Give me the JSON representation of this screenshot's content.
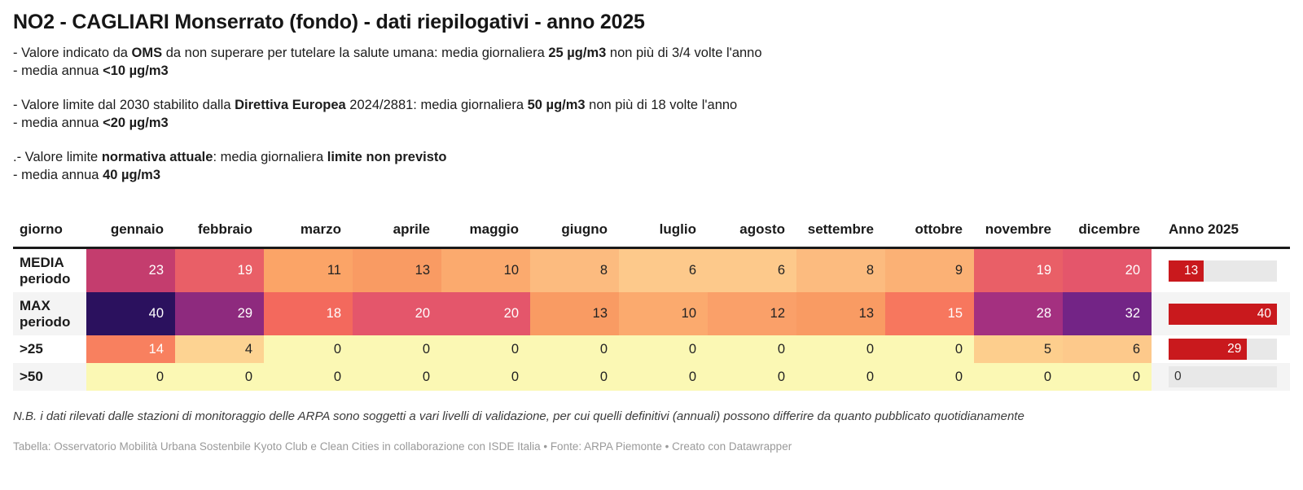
{
  "header": {
    "title": "NO2 - CAGLIARI Monserrato (fondo) - dati riepilogativi - anno 2025"
  },
  "intro": [
    {
      "lines": [
        [
          {
            "text": "- Valore indicato da "
          },
          {
            "text": "OMS",
            "bold": true
          },
          {
            "text": " da non superare per tutelare la salute umana: media giornaliera "
          },
          {
            "text": "25 µg/m3",
            "bold": true
          },
          {
            "text": " non più di 3/4 volte l'anno"
          }
        ],
        [
          {
            "text": "- media annua "
          },
          {
            "text": "<10 µg/m3",
            "bold": true
          }
        ]
      ]
    },
    {
      "lines": [
        [
          {
            "text": "- Valore limite dal 2030 stabilito dalla "
          },
          {
            "text": "Direttiva Europea",
            "bold": true
          },
          {
            "text": " 2024/2881: media giornaliera "
          },
          {
            "text": "50 µg/m3",
            "bold": true
          },
          {
            "text": " non più di 18 volte l'anno"
          }
        ],
        [
          {
            "text": "- media annua "
          },
          {
            "text": "<20 µg/m3",
            "bold": true
          }
        ]
      ]
    },
    {
      "lines": [
        [
          {
            "text": ".- Valore limite "
          },
          {
            "text": "normativa attuale",
            "bold": true
          },
          {
            "text": ": media giornaliera "
          },
          {
            "text": "limite non previsto",
            "bold": true
          }
        ],
        [
          {
            "text": "- media annua "
          },
          {
            "text": "40 µg/m3",
            "bold": true
          }
        ]
      ]
    }
  ],
  "chart_data": {
    "type": "heatmap",
    "unit": "µg/m3",
    "columns": {
      "day": "giorno",
      "months": [
        "gennaio",
        "febbraio",
        "marzo",
        "aprile",
        "maggio",
        "giugno",
        "luglio",
        "agosto",
        "settembre",
        "ottobre",
        "novembre",
        "dicembre"
      ],
      "anno": "Anno 2025"
    },
    "rows": [
      {
        "label": "MEDIA periodo",
        "label_lines": [
          "MEDIA",
          "periodo"
        ],
        "values": [
          23,
          19,
          11,
          13,
          10,
          8,
          6,
          6,
          8,
          9,
          19,
          20
        ],
        "anno": 13
      },
      {
        "label": "MAX periodo",
        "label_lines": [
          "MAX",
          "periodo"
        ],
        "values": [
          40,
          29,
          18,
          20,
          20,
          13,
          10,
          12,
          13,
          15,
          28,
          32
        ],
        "anno": 40
      },
      {
        "label": ">25",
        "label_lines": [
          ">25"
        ],
        "values": [
          14,
          4,
          0,
          0,
          0,
          0,
          0,
          0,
          0,
          0,
          5,
          6
        ],
        "anno": 29
      },
      {
        "label": ">50",
        "label_lines": [
          ">50"
        ],
        "values": [
          0,
          0,
          0,
          0,
          0,
          0,
          0,
          0,
          0,
          0,
          0,
          0
        ],
        "anno": 0
      }
    ],
    "anno_axis_max": 40,
    "colors": {
      "bar": "#c9191d",
      "track": "#e8e8e8",
      "cells": {
        "0": {
          "bg": "#fbf8b4",
          "fg": "#222222"
        },
        "4": {
          "bg": "#fdd392",
          "fg": "#222222"
        },
        "5": {
          "bg": "#fdce8d",
          "fg": "#222222"
        },
        "6": {
          "bg": "#fdc98b",
          "fg": "#222222"
        },
        "8": {
          "bg": "#fcbb7f",
          "fg": "#222222"
        },
        "9": {
          "bg": "#fbb175",
          "fg": "#222222"
        },
        "10": {
          "bg": "#fbaa6e",
          "fg": "#222222"
        },
        "11": {
          "bg": "#fba467",
          "fg": "#222222"
        },
        "12": {
          "bg": "#faa069",
          "fg": "#222222"
        },
        "13": {
          "bg": "#f99b63",
          "fg": "#222222"
        },
        "14": {
          "bg": "#f8805f",
          "fg": "#ffffff"
        },
        "15": {
          "bg": "#f7775e",
          "fg": "#ffffff"
        },
        "18": {
          "bg": "#f3695d",
          "fg": "#ffffff"
        },
        "19": {
          "bg": "#e95f67",
          "fg": "#ffffff"
        },
        "20": {
          "bg": "#e4566b",
          "fg": "#ffffff"
        },
        "23": {
          "bg": "#c43d6e",
          "fg": "#ffffff"
        },
        "28": {
          "bg": "#a43080",
          "fg": "#ffffff"
        },
        "29": {
          "bg": "#8e2a7e",
          "fg": "#ffffff"
        },
        "32": {
          "bg": "#732486",
          "fg": "#ffffff"
        },
        "40": {
          "bg": "#2b115e",
          "fg": "#ffffff"
        }
      }
    }
  },
  "footnote": "N.B. i dati rilevati dalle stazioni di monitoraggio delle ARPA sono soggetti a vari livelli di validazione, per cui quelli definitivi (annuali) possono differire da quanto pubblicato quotidianamente",
  "credits": "Tabella: Osservatorio Mobilità Urbana Sostenbile Kyoto Club e Clean Cities in collaborazione con ISDE Italia • Fonte: ARPA Piemonte • Creato con Datawrapper"
}
